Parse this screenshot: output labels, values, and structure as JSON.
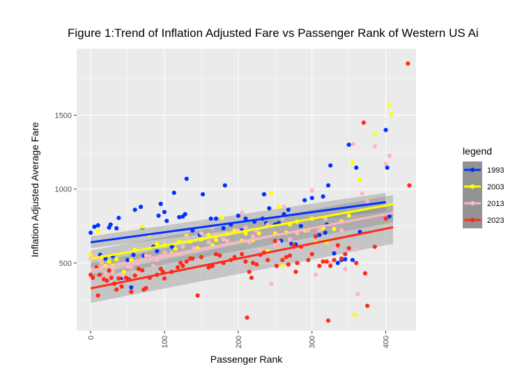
{
  "chart_data": {
    "type": "scatter",
    "title": "Figure 1:Trend of Inflation Adjusted Fare vs Passenger Rank of Western US Ai",
    "xlabel": "Passenger Rank",
    "ylabel": "Inflation Adjusted Average Fare",
    "xlim": [
      -19,
      441
    ],
    "ylim": [
      42,
      1950
    ],
    "x_ticks": [
      0,
      100,
      200,
      300,
      400
    ],
    "x_tick_labels": [
      "0",
      "100",
      "200",
      "300",
      "400"
    ],
    "y_ticks": [
      500,
      1000,
      1500
    ],
    "y_tick_labels": [
      "500",
      "1000",
      "1500"
    ],
    "grid": true,
    "legend_title": "legend",
    "legend_position": "right",
    "series": [
      {
        "name": "1993",
        "color": "#0033ff",
        "trend": {
          "x": [
            0,
            400
          ],
          "y": [
            640,
            912
          ]
        },
        "band": {
          "lower": [
            600,
            850
          ],
          "upper": [
            680,
            975
          ]
        },
        "points": [
          [
            0,
            705
          ],
          [
            5,
            745
          ],
          [
            10,
            755
          ],
          [
            13,
            555
          ],
          [
            20,
            530
          ],
          [
            25,
            740
          ],
          [
            27,
            760
          ],
          [
            30,
            545
          ],
          [
            35,
            735
          ],
          [
            38,
            805
          ],
          [
            42,
            400
          ],
          [
            50,
            520
          ],
          [
            55,
            335
          ],
          [
            58,
            555
          ],
          [
            60,
            860
          ],
          [
            68,
            880
          ],
          [
            70,
            740
          ],
          [
            72,
            550
          ],
          [
            80,
            540
          ],
          [
            85,
            610
          ],
          [
            90,
            580
          ],
          [
            92,
            820
          ],
          [
            95,
            900
          ],
          [
            100,
            845
          ],
          [
            103,
            785
          ],
          [
            110,
            610
          ],
          [
            113,
            975
          ],
          [
            120,
            810
          ],
          [
            125,
            815
          ],
          [
            128,
            830
          ],
          [
            130,
            1070
          ],
          [
            138,
            720
          ],
          [
            148,
            690
          ],
          [
            152,
            965
          ],
          [
            163,
            800
          ],
          [
            170,
            800
          ],
          [
            180,
            735
          ],
          [
            182,
            1025
          ],
          [
            190,
            760
          ],
          [
            200,
            820
          ],
          [
            202,
            720
          ],
          [
            205,
            720
          ],
          [
            210,
            800
          ],
          [
            222,
            780
          ],
          [
            233,
            800
          ],
          [
            235,
            965
          ],
          [
            238,
            770
          ],
          [
            242,
            870
          ],
          [
            250,
            760
          ],
          [
            255,
            770
          ],
          [
            258,
            650
          ],
          [
            262,
            830
          ],
          [
            268,
            860
          ],
          [
            272,
            630
          ],
          [
            278,
            625
          ],
          [
            285,
            750
          ],
          [
            290,
            925
          ],
          [
            300,
            940
          ],
          [
            310,
            690
          ],
          [
            315,
            950
          ],
          [
            318,
            705
          ],
          [
            320,
            760
          ],
          [
            322,
            1025
          ],
          [
            325,
            1160
          ],
          [
            330,
            565
          ],
          [
            335,
            500
          ],
          [
            340,
            520
          ],
          [
            345,
            525
          ],
          [
            350,
            1300
          ],
          [
            355,
            520
          ],
          [
            360,
            1145
          ],
          [
            365,
            710
          ],
          [
            400,
            1400
          ],
          [
            402,
            1145
          ],
          [
            405,
            815
          ]
        ]
      },
      {
        "name": "2003",
        "color": "#ffff00",
        "trend": {
          "x": [
            0,
            410
          ],
          "y": [
            528,
            898
          ]
        },
        "band": {
          "lower": [
            470,
            840
          ],
          "upper": [
            585,
            960
          ]
        },
        "points": [
          [
            0,
            555
          ],
          [
            5,
            545
          ],
          [
            10,
            715
          ],
          [
            15,
            540
          ],
          [
            20,
            480
          ],
          [
            25,
            510
          ],
          [
            30,
            480
          ],
          [
            35,
            525
          ],
          [
            45,
            440
          ],
          [
            55,
            520
          ],
          [
            60,
            590
          ],
          [
            70,
            745
          ],
          [
            80,
            690
          ],
          [
            90,
            630
          ],
          [
            100,
            620
          ],
          [
            110,
            565
          ],
          [
            115,
            595
          ],
          [
            120,
            645
          ],
          [
            130,
            685
          ],
          [
            135,
            645
          ],
          [
            145,
            600
          ],
          [
            150,
            660
          ],
          [
            160,
            690
          ],
          [
            165,
            620
          ],
          [
            170,
            655
          ],
          [
            178,
            805
          ],
          [
            185,
            695
          ],
          [
            195,
            720
          ],
          [
            205,
            650
          ],
          [
            210,
            700
          ],
          [
            220,
            655
          ],
          [
            228,
            700
          ],
          [
            240,
            580
          ],
          [
            245,
            975
          ],
          [
            250,
            700
          ],
          [
            255,
            880
          ],
          [
            260,
            480
          ],
          [
            265,
            705
          ],
          [
            270,
            760
          ],
          [
            280,
            780
          ],
          [
            290,
            720
          ],
          [
            300,
            800
          ],
          [
            305,
            640
          ],
          [
            310,
            720
          ],
          [
            315,
            735
          ],
          [
            320,
            640
          ],
          [
            330,
            730
          ],
          [
            340,
            780
          ],
          [
            350,
            820
          ],
          [
            355,
            1180
          ],
          [
            358,
            150
          ],
          [
            365,
            1065
          ],
          [
            385,
            1375
          ],
          [
            405,
            1570
          ],
          [
            408,
            1505
          ]
        ]
      },
      {
        "name": "2013",
        "color": "#ffb6c1",
        "trend": {
          "x": [
            0,
            410
          ],
          "y": [
            450,
            840
          ]
        },
        "band": {
          "lower": [
            400,
            775
          ],
          "upper": [
            500,
            905
          ]
        },
        "points": [
          [
            0,
            530
          ],
          [
            5,
            545
          ],
          [
            10,
            470
          ],
          [
            12,
            520
          ],
          [
            15,
            500
          ],
          [
            20,
            430
          ],
          [
            25,
            415
          ],
          [
            30,
            440
          ],
          [
            40,
            420
          ],
          [
            45,
            410
          ],
          [
            50,
            475
          ],
          [
            55,
            470
          ],
          [
            60,
            430
          ],
          [
            65,
            500
          ],
          [
            70,
            440
          ],
          [
            75,
            550
          ],
          [
            80,
            545
          ],
          [
            85,
            480
          ],
          [
            90,
            520
          ],
          [
            95,
            545
          ],
          [
            100,
            570
          ],
          [
            110,
            560
          ],
          [
            115,
            630
          ],
          [
            120,
            560
          ],
          [
            125,
            610
          ],
          [
            130,
            675
          ],
          [
            140,
            600
          ],
          [
            150,
            700
          ],
          [
            160,
            640
          ],
          [
            165,
            740
          ],
          [
            170,
            685
          ],
          [
            180,
            660
          ],
          [
            185,
            650
          ],
          [
            190,
            700
          ],
          [
            200,
            720
          ],
          [
            205,
            840
          ],
          [
            210,
            740
          ],
          [
            215,
            640
          ],
          [
            220,
            680
          ],
          [
            225,
            720
          ],
          [
            230,
            590
          ],
          [
            240,
            760
          ],
          [
            245,
            360
          ],
          [
            250,
            620
          ],
          [
            255,
            640
          ],
          [
            260,
            800
          ],
          [
            262,
            880
          ],
          [
            270,
            660
          ],
          [
            280,
            700
          ],
          [
            285,
            595
          ],
          [
            295,
            720
          ],
          [
            300,
            990
          ],
          [
            305,
            420
          ],
          [
            310,
            720
          ],
          [
            318,
            800
          ],
          [
            325,
            500
          ],
          [
            332,
            600
          ],
          [
            340,
            720
          ],
          [
            345,
            460
          ],
          [
            350,
            600
          ],
          [
            356,
            1305
          ],
          [
            360,
            590
          ],
          [
            362,
            290
          ],
          [
            368,
            970
          ],
          [
            375,
            920
          ],
          [
            385,
            1290
          ],
          [
            400,
            1170
          ],
          [
            405,
            1225
          ]
        ]
      },
      {
        "name": "2023",
        "color": "#ff2a1a",
        "trend": {
          "x": [
            0,
            410
          ],
          "y": [
            328,
            742
          ]
        },
        "band": {
          "lower": [
            230,
            630
          ],
          "upper": [
            420,
            845
          ]
        },
        "points": [
          [
            0,
            420
          ],
          [
            3,
            400
          ],
          [
            8,
            470
          ],
          [
            10,
            280
          ],
          [
            12,
            420
          ],
          [
            18,
            390
          ],
          [
            22,
            380
          ],
          [
            25,
            450
          ],
          [
            28,
            400
          ],
          [
            32,
            360
          ],
          [
            35,
            320
          ],
          [
            38,
            395
          ],
          [
            42,
            340
          ],
          [
            48,
            400
          ],
          [
            52,
            390
          ],
          [
            55,
            305
          ],
          [
            60,
            415
          ],
          [
            65,
            460
          ],
          [
            70,
            450
          ],
          [
            72,
            320
          ],
          [
            75,
            330
          ],
          [
            80,
            400
          ],
          [
            90,
            420
          ],
          [
            95,
            460
          ],
          [
            98,
            440
          ],
          [
            100,
            395
          ],
          [
            110,
            440
          ],
          [
            118,
            470
          ],
          [
            122,
            500
          ],
          [
            125,
            480
          ],
          [
            130,
            510
          ],
          [
            135,
            530
          ],
          [
            138,
            530
          ],
          [
            145,
            280
          ],
          [
            150,
            540
          ],
          [
            160,
            470
          ],
          [
            165,
            480
          ],
          [
            170,
            560
          ],
          [
            175,
            550
          ],
          [
            180,
            500
          ],
          [
            190,
            520
          ],
          [
            195,
            540
          ],
          [
            205,
            560
          ],
          [
            210,
            510
          ],
          [
            212,
            130
          ],
          [
            215,
            440
          ],
          [
            218,
            400
          ],
          [
            220,
            500
          ],
          [
            225,
            490
          ],
          [
            230,
            555
          ],
          [
            235,
            570
          ],
          [
            240,
            520
          ],
          [
            250,
            650
          ],
          [
            252,
            480
          ],
          [
            260,
            520
          ],
          [
            265,
            540
          ],
          [
            268,
            490
          ],
          [
            270,
            550
          ],
          [
            275,
            620
          ],
          [
            278,
            440
          ],
          [
            280,
            500
          ],
          [
            285,
            610
          ],
          [
            295,
            520
          ],
          [
            300,
            560
          ],
          [
            305,
            680
          ],
          [
            310,
            480
          ],
          [
            315,
            510
          ],
          [
            320,
            510
          ],
          [
            322,
            110
          ],
          [
            325,
            480
          ],
          [
            330,
            520
          ],
          [
            335,
            620
          ],
          [
            340,
            530
          ],
          [
            345,
            560
          ],
          [
            350,
            600
          ],
          [
            360,
            500
          ],
          [
            370,
            1450
          ],
          [
            372,
            430
          ],
          [
            375,
            210
          ],
          [
            385,
            610
          ],
          [
            400,
            800
          ],
          [
            430,
            1850
          ],
          [
            432,
            1025
          ]
        ]
      }
    ]
  }
}
